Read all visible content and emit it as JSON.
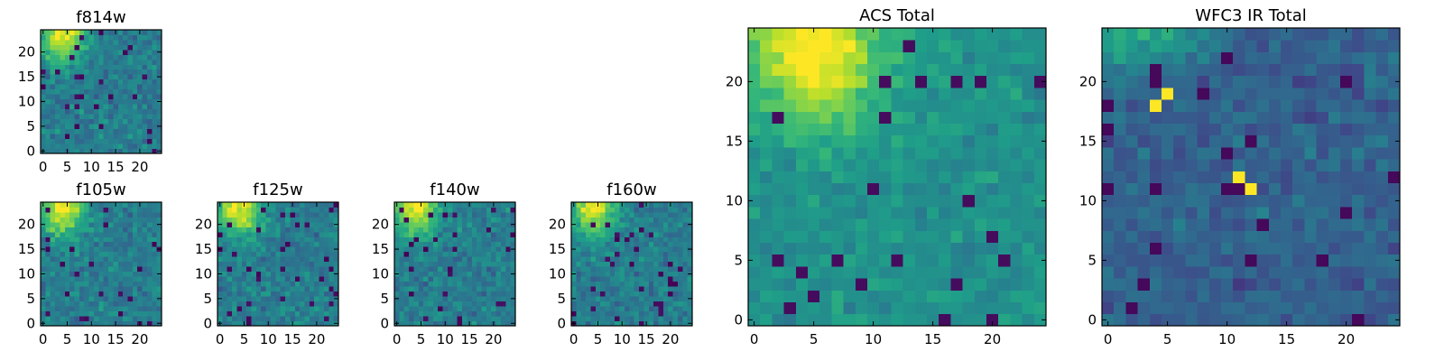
{
  "chart_data": [
    {
      "type": "heatmap",
      "title": "f814w",
      "x_ticks": [
        "0",
        "5",
        "10",
        "15",
        "20"
      ],
      "y_ticks": [
        "0",
        "5",
        "10",
        "15",
        "20"
      ],
      "xlim": [
        0,
        25
      ],
      "ylim": [
        0,
        25
      ],
      "grid_size": 25,
      "colormap": "viridis",
      "hotspots": [
        {
          "x": 3,
          "y": 24,
          "value": 1.0
        }
      ]
    },
    {
      "type": "heatmap",
      "title": "f105w",
      "x_ticks": [
        "0",
        "5",
        "10",
        "15",
        "20"
      ],
      "y_ticks": [
        "0",
        "5",
        "10",
        "15",
        "20"
      ],
      "xlim": [
        0,
        25
      ],
      "ylim": [
        0,
        25
      ],
      "grid_size": 25,
      "colormap": "viridis",
      "hotspots": [
        {
          "x": 3,
          "y": 24,
          "value": 1.0
        }
      ]
    },
    {
      "type": "heatmap",
      "title": "f125w",
      "x_ticks": [
        "0",
        "5",
        "10",
        "15",
        "20"
      ],
      "y_ticks": [
        "0",
        "5",
        "10",
        "15",
        "20"
      ],
      "xlim": [
        0,
        25
      ],
      "ylim": [
        0,
        25
      ],
      "grid_size": 25,
      "colormap": "viridis",
      "hotspots": [
        {
          "x": 3,
          "y": 24,
          "value": 1.0
        }
      ]
    },
    {
      "type": "heatmap",
      "title": "f140w",
      "x_ticks": [
        "0",
        "5",
        "10",
        "15",
        "20"
      ],
      "y_ticks": [
        "0",
        "5",
        "10",
        "15",
        "20"
      ],
      "xlim": [
        0,
        25
      ],
      "ylim": [
        0,
        25
      ],
      "grid_size": 25,
      "colormap": "viridis",
      "hotspots": [
        {
          "x": 4,
          "y": 24,
          "value": 1.0
        }
      ]
    },
    {
      "type": "heatmap",
      "title": "f160w",
      "x_ticks": [
        "0",
        "5",
        "10",
        "15",
        "20"
      ],
      "y_ticks": [
        "0",
        "5",
        "10",
        "15",
        "20"
      ],
      "xlim": [
        0,
        25
      ],
      "ylim": [
        0,
        25
      ],
      "grid_size": 25,
      "colormap": "viridis",
      "hotspots": [
        {
          "x": 5,
          "y": 24,
          "value": 1.0
        }
      ]
    },
    {
      "type": "heatmap",
      "title": "ACS Total",
      "x_ticks": [
        "0",
        "5",
        "10",
        "15",
        "20"
      ],
      "y_ticks": [
        "0",
        "5",
        "10",
        "15",
        "20"
      ],
      "xlim": [
        0,
        25
      ],
      "ylim": [
        0,
        25
      ],
      "grid_size": 25,
      "colormap": "viridis",
      "hotspots": [
        {
          "x": 4,
          "y": 24,
          "value": 1.0
        },
        {
          "x": 6,
          "y": 24,
          "value": 1.0
        }
      ]
    },
    {
      "type": "heatmap",
      "title": "WFC3 IR Total",
      "x_ticks": [
        "0",
        "5",
        "10",
        "15",
        "20"
      ],
      "y_ticks": [
        "0",
        "5",
        "10",
        "15",
        "20"
      ],
      "xlim": [
        0,
        25
      ],
      "ylim": [
        0,
        25
      ],
      "grid_size": 25,
      "colormap": "viridis",
      "hotspots": [
        {
          "x": 5,
          "y": 19,
          "value": 1.0
        },
        {
          "x": 4,
          "y": 18,
          "value": 1.0
        },
        {
          "x": 11,
          "y": 12,
          "value": 1.0
        },
        {
          "x": 12,
          "y": 11,
          "value": 1.0
        }
      ]
    }
  ]
}
